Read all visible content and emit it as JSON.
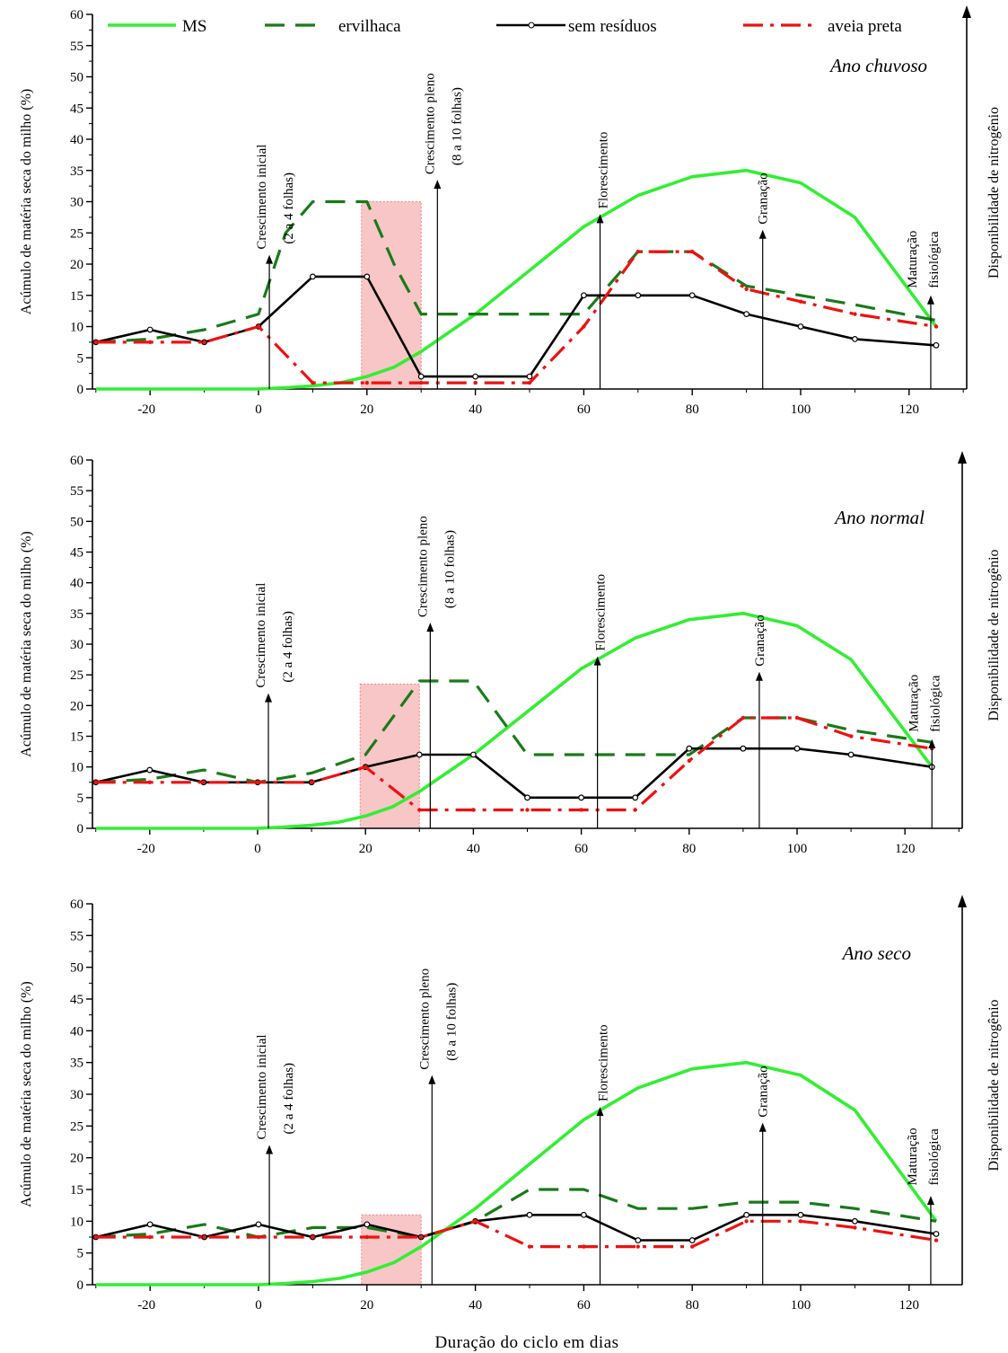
{
  "legend": {
    "ms": "MS",
    "ervilhaca": "ervilhaca",
    "sem_residuos": "sem resíduos",
    "aveia_preta": "aveia preta"
  },
  "x_axis_title": "Duração do ciclo em dias",
  "y_axis_title": "Acúmulo de matéria seca do milho (%)",
  "y2_axis_title": "Disponibilidade de nitrogênio",
  "colors": {
    "ms": "#33ee33",
    "ervilhaca": "#1a7a1a",
    "sem_residuos": "#000000",
    "aveia_preta": "#ee1111",
    "shade": "#f08080"
  },
  "annotations": {
    "crescimento_inicial": [
      "Crescimento inicial",
      "(2 a 4 folhas)"
    ],
    "crescimento_pleno": [
      "Crescimento pleno",
      "(8 a 10 folhas)"
    ],
    "florescimento": "Florescimento",
    "granacao": "Granação",
    "maturacao": [
      "Maturação",
      "fisiológica"
    ]
  },
  "chart_data": [
    {
      "type": "line",
      "title": "Ano chuvoso",
      "xlabel": "",
      "ylabel": "Acúmulo de matéria seca do milho (%)",
      "xlim": [
        -30,
        130
      ],
      "ylim": [
        0,
        60
      ],
      "x_ticks": [
        -20,
        0,
        20,
        40,
        60,
        80,
        100,
        120
      ],
      "y_ticks": [
        0,
        5,
        10,
        15,
        20,
        25,
        30,
        35,
        40,
        45,
        50,
        55,
        60
      ],
      "shaded_x": [
        19,
        30
      ],
      "shaded_top": 30,
      "stage_markers": {
        "crescimento_inicial": 2,
        "crescimento_pleno": 33,
        "florescimento": 63,
        "granacao": 93,
        "maturacao": 124
      },
      "series": [
        {
          "name": "MS",
          "key": "ms",
          "x": [
            -30,
            -20,
            -10,
            0,
            5,
            10,
            15,
            20,
            25,
            30,
            40,
            50,
            60,
            70,
            80,
            90,
            100,
            110,
            125
          ],
          "y": [
            0,
            0,
            0,
            0,
            0.2,
            0.5,
            1,
            2,
            3.5,
            6,
            12,
            19,
            26,
            31,
            34,
            35,
            33,
            27.5,
            10
          ]
        },
        {
          "name": "ervilhaca",
          "key": "ervilhaca",
          "x": [
            -30,
            -20,
            -10,
            0,
            5,
            10,
            15,
            20,
            25,
            30,
            40,
            50,
            60,
            70,
            80,
            90,
            100,
            110,
            125
          ],
          "y": [
            7.5,
            8,
            9.5,
            12,
            25,
            30,
            30,
            30,
            20,
            12,
            12,
            12,
            12,
            22,
            22,
            16.5,
            15,
            13.5,
            11
          ]
        },
        {
          "name": "sem resíduos",
          "key": "sem_residuos",
          "x": [
            -30,
            -20,
            -10,
            0,
            10,
            20,
            30,
            40,
            50,
            60,
            70,
            80,
            90,
            100,
            110,
            125
          ],
          "y": [
            7.5,
            9.5,
            7.5,
            10,
            18,
            18,
            2,
            2,
            2,
            15,
            15,
            15,
            12,
            10,
            8,
            7
          ]
        },
        {
          "name": "aveia preta",
          "key": "aveia_preta",
          "x": [
            -30,
            -20,
            -10,
            0,
            10,
            20,
            30,
            40,
            50,
            60,
            70,
            80,
            90,
            100,
            110,
            125
          ],
          "y": [
            7.5,
            7.5,
            7.5,
            10,
            1,
            1,
            1,
            1,
            1,
            10,
            22,
            22,
            16,
            14,
            12,
            10
          ]
        }
      ]
    },
    {
      "type": "line",
      "title": "Ano normal",
      "xlabel": "",
      "ylabel": "Acúmulo de matéria seca do milho (%)",
      "xlim": [
        -30,
        130
      ],
      "ylim": [
        0,
        60
      ],
      "x_ticks": [
        -20,
        0,
        20,
        40,
        60,
        80,
        100,
        120
      ],
      "y_ticks": [
        0,
        5,
        10,
        15,
        20,
        25,
        30,
        35,
        40,
        45,
        50,
        55,
        60
      ],
      "shaded_x": [
        19,
        30
      ],
      "shaded_top": 23.5,
      "stage_markers": {
        "crescimento_inicial": 2,
        "crescimento_pleno": 32,
        "florescimento": 63,
        "granacao": 93,
        "maturacao": 125
      },
      "series": [
        {
          "name": "MS",
          "key": "ms",
          "x": [
            -30,
            -20,
            -10,
            0,
            5,
            10,
            15,
            20,
            25,
            30,
            40,
            50,
            60,
            70,
            80,
            90,
            100,
            110,
            125
          ],
          "y": [
            0,
            0,
            0,
            0,
            0.2,
            0.5,
            1,
            2,
            3.5,
            6,
            12,
            19,
            26,
            31,
            34,
            35,
            33,
            27.5,
            10
          ]
        },
        {
          "name": "ervilhaca",
          "key": "ervilhaca",
          "x": [
            -30,
            -20,
            -10,
            0,
            10,
            20,
            30,
            40,
            50,
            60,
            70,
            80,
            90,
            100,
            110,
            125
          ],
          "y": [
            7.5,
            8,
            9.5,
            7.5,
            9,
            12,
            24,
            24,
            12,
            12,
            12,
            12,
            18,
            18,
            16,
            14
          ]
        },
        {
          "name": "sem resíduos",
          "key": "sem_residuos",
          "x": [
            -30,
            -20,
            -10,
            0,
            10,
            20,
            30,
            40,
            50,
            60,
            70,
            80,
            90,
            100,
            110,
            125
          ],
          "y": [
            7.5,
            9.5,
            7.5,
            7.5,
            7.5,
            10,
            12,
            12,
            5,
            5,
            5,
            13,
            13,
            13,
            12,
            10
          ]
        },
        {
          "name": "aveia preta",
          "key": "aveia_preta",
          "x": [
            -30,
            -20,
            -10,
            0,
            10,
            20,
            30,
            40,
            50,
            60,
            70,
            80,
            90,
            100,
            110,
            125
          ],
          "y": [
            7.5,
            7.5,
            7.5,
            7.5,
            7.5,
            10,
            3,
            3,
            3,
            3,
            3,
            11,
            18,
            18,
            15,
            13
          ]
        }
      ]
    },
    {
      "type": "line",
      "title": "Ano seco",
      "xlabel": "Duração do ciclo em dias",
      "ylabel": "Acúmulo de matéria seca do milho (%)",
      "xlim": [
        -30,
        130
      ],
      "ylim": [
        0,
        60
      ],
      "x_ticks": [
        -20,
        0,
        20,
        40,
        60,
        80,
        100,
        120
      ],
      "y_ticks": [
        0,
        5,
        10,
        15,
        20,
        25,
        30,
        35,
        40,
        45,
        50,
        55,
        60
      ],
      "shaded_x": [
        19,
        30
      ],
      "shaded_top": 11,
      "stage_markers": {
        "crescimento_inicial": 2,
        "crescimento_pleno": 32,
        "florescimento": 63,
        "granacao": 93,
        "maturacao": 124
      },
      "series": [
        {
          "name": "MS",
          "key": "ms",
          "x": [
            -30,
            -20,
            -10,
            0,
            5,
            10,
            15,
            20,
            25,
            30,
            40,
            50,
            60,
            70,
            80,
            90,
            100,
            110,
            125
          ],
          "y": [
            0,
            0,
            0,
            0,
            0.2,
            0.5,
            1,
            2,
            3.5,
            6,
            12,
            19,
            26,
            31,
            34,
            35,
            33,
            27.5,
            10
          ]
        },
        {
          "name": "ervilhaca",
          "key": "ervilhaca",
          "x": [
            -30,
            -20,
            -10,
            0,
            10,
            20,
            30,
            40,
            50,
            60,
            70,
            80,
            90,
            100,
            110,
            125
          ],
          "y": [
            7.5,
            8,
            9.5,
            7.5,
            9,
            9,
            7.5,
            10,
            15,
            15,
            12,
            12,
            13,
            13,
            12,
            10
          ]
        },
        {
          "name": "sem resíduos",
          "key": "sem_residuos",
          "x": [
            -30,
            -20,
            -10,
            0,
            10,
            20,
            30,
            40,
            50,
            60,
            70,
            80,
            90,
            100,
            110,
            125
          ],
          "y": [
            7.5,
            9.5,
            7.5,
            9.5,
            7.5,
            9.5,
            7.5,
            10,
            11,
            11,
            7,
            7,
            11,
            11,
            10,
            8
          ]
        },
        {
          "name": "aveia preta",
          "key": "aveia_preta",
          "x": [
            -30,
            -20,
            -10,
            0,
            10,
            20,
            30,
            40,
            50,
            60,
            70,
            80,
            90,
            100,
            110,
            125
          ],
          "y": [
            7.5,
            7.5,
            7.5,
            7.5,
            7.5,
            7.5,
            7.5,
            10,
            6,
            6,
            6,
            6,
            10,
            10,
            9,
            7
          ]
        }
      ]
    }
  ]
}
